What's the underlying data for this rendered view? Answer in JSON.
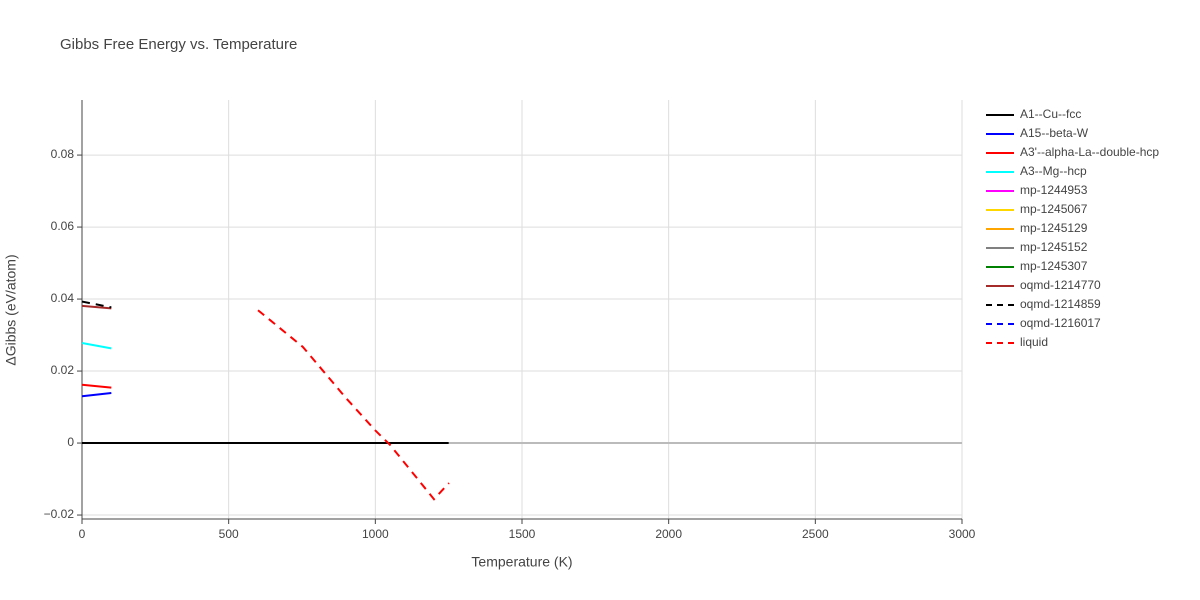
{
  "chart_data": {
    "type": "line",
    "title": "Gibbs Free Energy vs. Temperature",
    "x_label": "Temperature (K)",
    "y_label": "ΔGibbs (eV/atom)",
    "xlim": [
      0,
      3000
    ],
    "xticks": [
      0,
      500,
      1000,
      1500,
      2000,
      2500,
      3000
    ],
    "ylim": [
      -0.0211,
      0.0953
    ],
    "yticks": [
      {
        "value": -0.02,
        "label": "−0.02"
      },
      0,
      0.02,
      0.04,
      0.06,
      0.08
    ],
    "grid": true,
    "series": [
      {
        "name": "A1--Cu--fcc",
        "color": "#000000",
        "dash": false,
        "x": [
          0,
          1250
        ],
        "values": [
          0,
          0
        ]
      },
      {
        "name": "A15--beta-W",
        "color": "#0000ff",
        "dash": false,
        "x": [
          0,
          100
        ],
        "values": [
          0.013,
          0.0139
        ]
      },
      {
        "name": "A3'--alpha-La--double-hcp",
        "color": "#ff0000",
        "dash": false,
        "x": [
          0,
          100
        ],
        "values": [
          0.0162,
          0.0154
        ]
      },
      {
        "name": "A3--Mg--hcp",
        "color": "#00ffff",
        "dash": false,
        "x": [
          0,
          100
        ],
        "values": [
          0.0278,
          0.0263
        ]
      },
      {
        "name": "mp-1244953",
        "color": "#ff00ff",
        "dash": false,
        "x": [],
        "values": []
      },
      {
        "name": "mp-1245067",
        "color": "#ffd700",
        "dash": false,
        "x": [],
        "values": []
      },
      {
        "name": "mp-1245129",
        "color": "#ffa500",
        "dash": false,
        "x": [],
        "values": []
      },
      {
        "name": "mp-1245152",
        "color": "#808080",
        "dash": false,
        "x": [],
        "values": []
      },
      {
        "name": "mp-1245307",
        "color": "#008000",
        "dash": false,
        "x": [],
        "values": []
      },
      {
        "name": "oqmd-1214770",
        "color": "#a52a2a",
        "dash": false,
        "x": [
          0,
          100
        ],
        "values": [
          0.0381,
          0.0374
        ]
      },
      {
        "name": "oqmd-1214859",
        "color": "#000000",
        "dash": true,
        "x": [
          0,
          100
        ],
        "values": [
          0.0393,
          0.0377
        ]
      },
      {
        "name": "oqmd-1216017",
        "color": "#0000ff",
        "dash": true,
        "x": [],
        "values": []
      },
      {
        "name": "liquid",
        "color": "#ff0000",
        "dash": true,
        "x": [
          600,
          753,
          900,
          1000,
          1050,
          1200,
          1251
        ],
        "values": [
          0.0369,
          0.0267,
          0.0125,
          0.0035,
          -0.0005,
          -0.0156,
          -0.0111
        ]
      }
    ]
  }
}
